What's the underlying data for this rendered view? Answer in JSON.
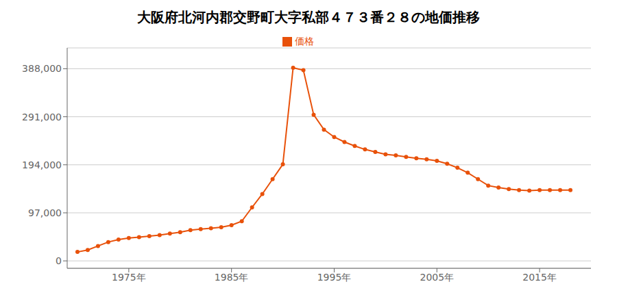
{
  "chart_data": {
    "type": "line",
    "title": "大阪府北河内郡交野町大字私部４７３番２８の地価推移",
    "x": [
      1970,
      1971,
      1972,
      1973,
      1974,
      1975,
      1976,
      1977,
      1978,
      1979,
      1980,
      1981,
      1982,
      1983,
      1984,
      1985,
      1986,
      1987,
      1988,
      1989,
      1990,
      1991,
      1992,
      1993,
      1994,
      1995,
      1996,
      1997,
      1998,
      1999,
      2000,
      2001,
      2002,
      2003,
      2004,
      2005,
      2006,
      2007,
      2008,
      2009,
      2010,
      2011,
      2012,
      2013,
      2014,
      2015,
      2016,
      2017,
      2018
    ],
    "series": [
      {
        "name": "価格",
        "color": "#e8510a",
        "values": [
          18000,
          22000,
          30000,
          38000,
          43000,
          46000,
          48000,
          50000,
          52000,
          55000,
          58000,
          62000,
          64000,
          66000,
          68000,
          72000,
          80000,
          108000,
          135000,
          165000,
          195000,
          390000,
          385000,
          295000,
          265000,
          250000,
          240000,
          232000,
          225000,
          220000,
          215000,
          213000,
          210000,
          207000,
          205000,
          202000,
          196000,
          188000,
          178000,
          165000,
          152000,
          148000,
          145000,
          143000,
          142000,
          143000,
          143000,
          143000,
          143000
        ]
      }
    ],
    "xlim": [
      1969,
      2020
    ],
    "xticks": [
      {
        "value": 1975,
        "label": "1975年"
      },
      {
        "value": 1985,
        "label": "1985年"
      },
      {
        "value": 1995,
        "label": "1995年"
      },
      {
        "value": 2005,
        "label": "2005年"
      },
      {
        "value": 2015,
        "label": "2015年"
      }
    ],
    "ylim": [
      -15000,
      430000
    ],
    "yticks": [
      0,
      {
        "value": 97000,
        "label": "97,000"
      },
      {
        "value": 194000,
        "label": "194,000"
      },
      {
        "value": 291000,
        "label": "291,000"
      },
      {
        "value": 388000,
        "label": "388,000"
      }
    ],
    "grid": true,
    "legend": "top",
    "marker": "o"
  }
}
